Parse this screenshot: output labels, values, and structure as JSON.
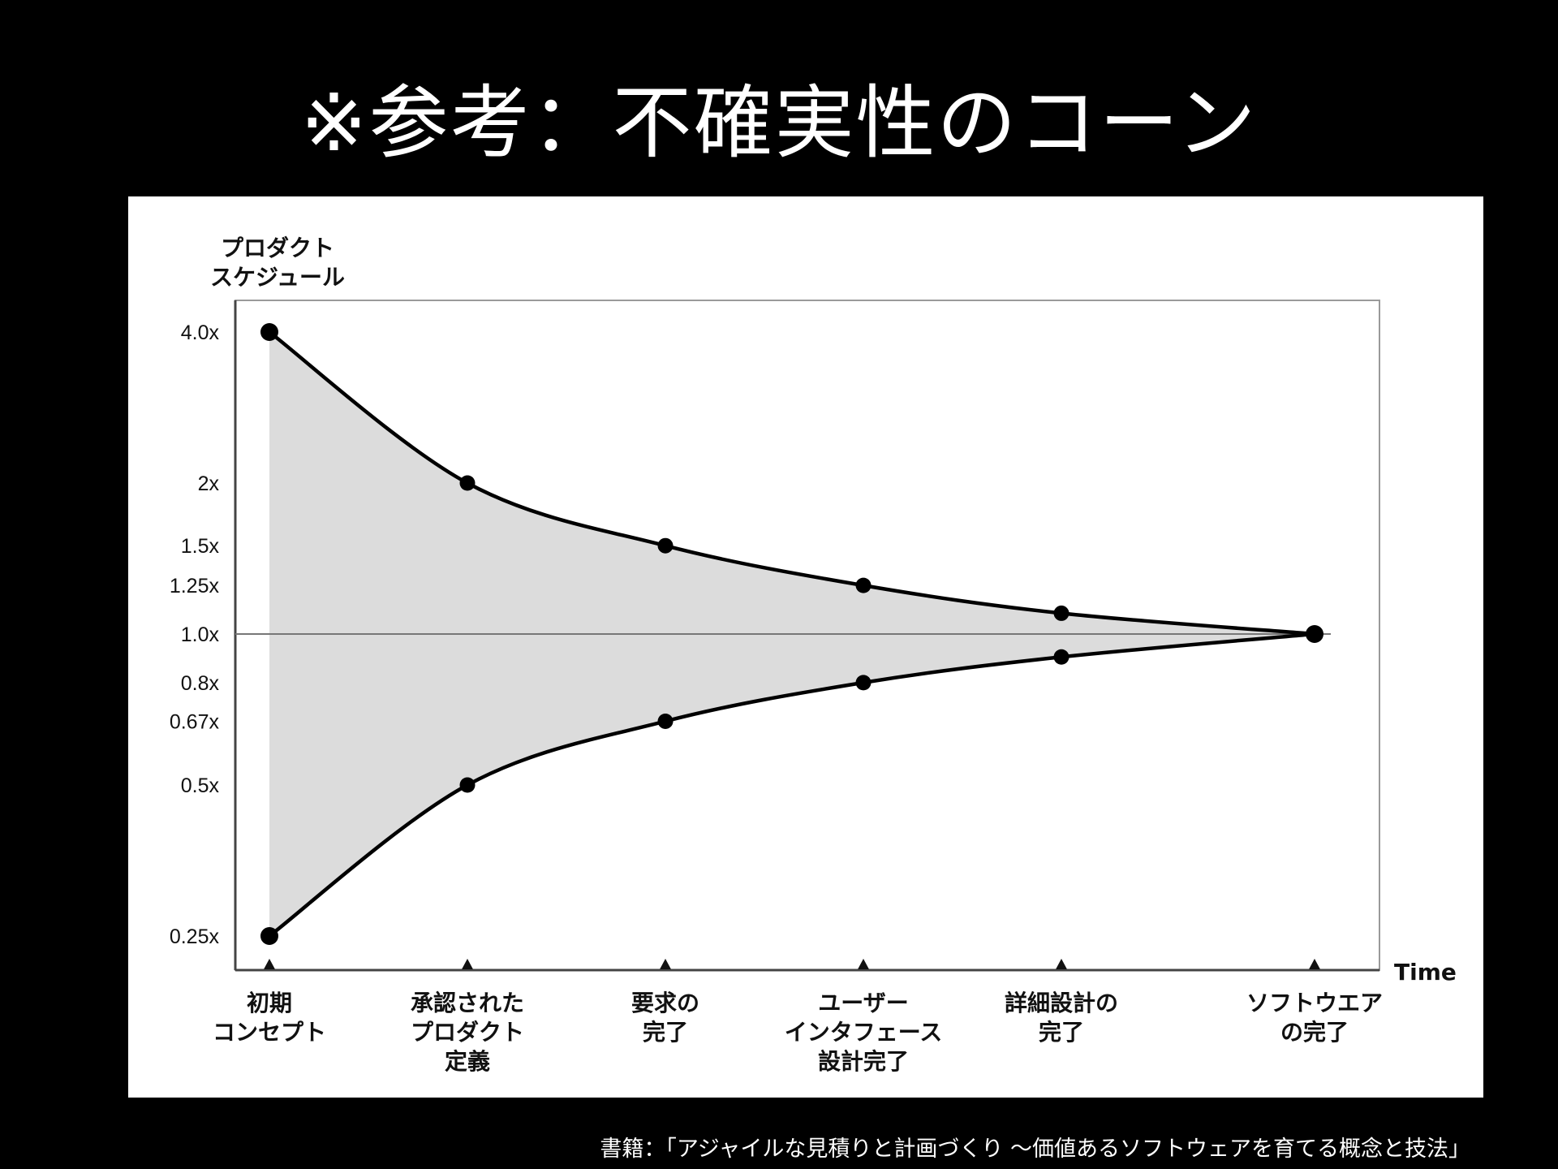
{
  "title": "※参考：不確実性のコーン",
  "source": "書籍：「アジャイルな見積りと計画づくり 〜価値あるソフトウェアを育てる概念と技法」",
  "chart_data": {
    "type": "line",
    "y_axis_title": [
      "プロダクト",
      "スケジュール"
    ],
    "x_axis_title": "Time",
    "y_scale": "log",
    "ylim": [
      0.22,
      4.5
    ],
    "y_ticks": [
      {
        "value": 4.0,
        "label": "4.0x"
      },
      {
        "value": 2.0,
        "label": "2x"
      },
      {
        "value": 1.5,
        "label": "1.5x"
      },
      {
        "value": 1.25,
        "label": "1.25x"
      },
      {
        "value": 1.0,
        "label": "1.0x"
      },
      {
        "value": 0.8,
        "label": "0.8x"
      },
      {
        "value": 0.67,
        "label": "0.67x"
      },
      {
        "value": 0.5,
        "label": "0.5x"
      },
      {
        "value": 0.25,
        "label": "0.25x"
      }
    ],
    "categories": [
      [
        "初期",
        "コンセプト"
      ],
      [
        "承認された",
        "プロダクト",
        "定義"
      ],
      [
        "要求の",
        "完了"
      ],
      [
        "ユーザー",
        "インタフェース",
        "設計完了"
      ],
      [
        "詳細設計の",
        "完了"
      ],
      [
        "ソフトウエア",
        "の完了"
      ]
    ],
    "series": [
      {
        "values": [
          4.0,
          2.0,
          1.5,
          1.25,
          1.1,
          1.0
        ]
      },
      {
        "values": [
          0.25,
          0.5,
          0.67,
          0.8,
          0.9,
          1.0
        ]
      }
    ],
    "colors": {
      "fill": "#dcdcdc",
      "line": "#000000",
      "baseline": "#777777",
      "frame": "#9a9a9a"
    }
  }
}
